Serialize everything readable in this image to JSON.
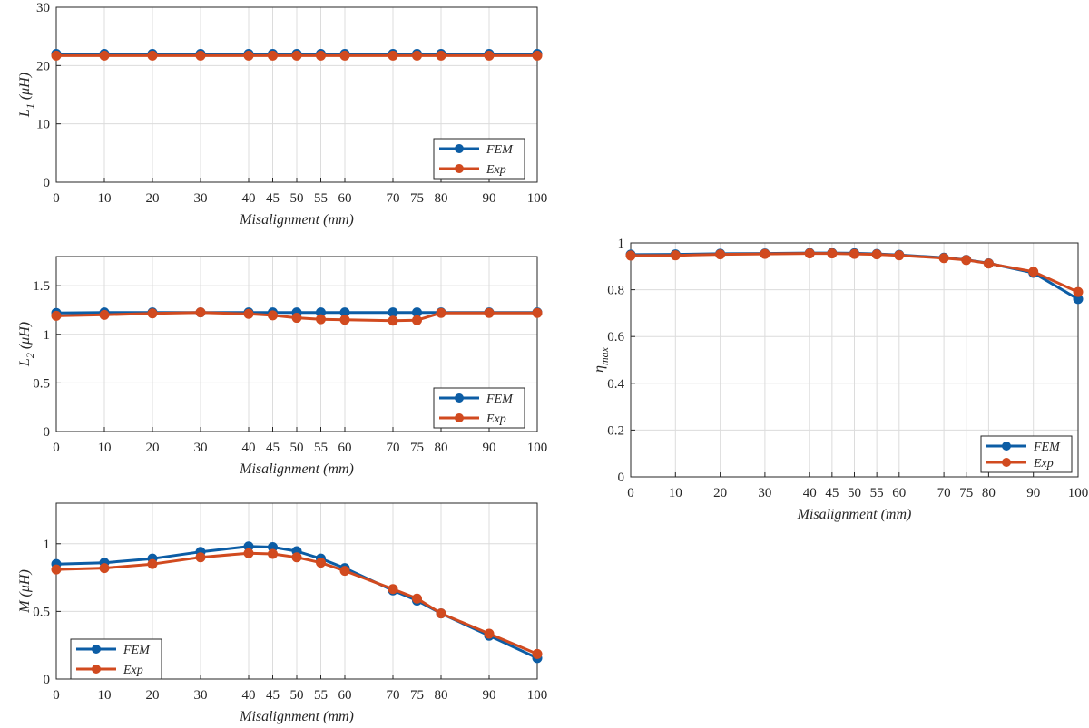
{
  "colors": {
    "fem": "#0C5DA5",
    "exp": "#D14A1F",
    "axis": "#262626",
    "grid": "#dcdcdc"
  },
  "legend": [
    "FEM",
    "Exp"
  ],
  "chart_data": [
    {
      "type": "line",
      "id": "L1",
      "ylabel": "L",
      "ylabel_sub": "1",
      "ylabel_unit": " (μH)",
      "xlabel": "Misalignment (mm)",
      "xlim": [
        0,
        100
      ],
      "ylim": [
        0,
        30
      ],
      "yticks": [
        0,
        10,
        20,
        30
      ],
      "xticks": [
        0,
        10,
        20,
        30,
        40,
        45,
        50,
        55,
        60,
        70,
        75,
        80,
        90,
        100
      ],
      "grid": true,
      "legend_position": "bottom-right",
      "x": [
        0,
        10,
        20,
        30,
        40,
        45,
        50,
        55,
        60,
        70,
        75,
        80,
        90,
        100
      ],
      "series": [
        {
          "name": "FEM",
          "values": [
            22.0,
            22.0,
            22.0,
            22.0,
            22.0,
            22.0,
            22.0,
            22.0,
            22.0,
            22.0,
            22.0,
            22.0,
            22.0,
            22.0
          ]
        },
        {
          "name": "Exp",
          "values": [
            21.7,
            21.7,
            21.7,
            21.7,
            21.7,
            21.7,
            21.7,
            21.7,
            21.7,
            21.7,
            21.7,
            21.7,
            21.7,
            21.7
          ]
        }
      ]
    },
    {
      "type": "line",
      "id": "L2",
      "ylabel": "L",
      "ylabel_sub": "2",
      "ylabel_unit": " (μH)",
      "xlabel": "Misalignment (mm)",
      "xlim": [
        0,
        100
      ],
      "ylim": [
        0,
        1.8
      ],
      "yticks": [
        0,
        0.5,
        1,
        1.5
      ],
      "xticks": [
        0,
        10,
        20,
        30,
        40,
        45,
        50,
        55,
        60,
        70,
        75,
        80,
        90,
        100
      ],
      "grid": true,
      "legend_position": "bottom-right",
      "x": [
        0,
        10,
        20,
        30,
        40,
        45,
        50,
        55,
        60,
        70,
        75,
        80,
        90,
        100
      ],
      "series": [
        {
          "name": "FEM",
          "values": [
            1.22,
            1.225,
            1.225,
            1.225,
            1.225,
            1.225,
            1.225,
            1.225,
            1.225,
            1.225,
            1.225,
            1.225,
            1.225,
            1.225
          ]
        },
        {
          "name": "Exp",
          "values": [
            1.19,
            1.2,
            1.215,
            1.225,
            1.21,
            1.195,
            1.17,
            1.155,
            1.15,
            1.14,
            1.145,
            1.22,
            1.22,
            1.22
          ]
        }
      ]
    },
    {
      "type": "line",
      "id": "M",
      "ylabel": "M",
      "ylabel_sub": "",
      "ylabel_unit": " (μH)",
      "xlabel": "Misalignment (mm)",
      "xlim": [
        0,
        100
      ],
      "ylim": [
        0,
        1.3
      ],
      "yticks": [
        0,
        0.5,
        1
      ],
      "xticks": [
        0,
        10,
        20,
        30,
        40,
        45,
        50,
        55,
        60,
        70,
        75,
        80,
        90,
        100
      ],
      "grid": true,
      "legend_position": "bottom-left",
      "x": [
        0,
        10,
        20,
        30,
        40,
        45,
        50,
        55,
        60,
        70,
        75,
        80,
        90,
        100
      ],
      "series": [
        {
          "name": "FEM",
          "values": [
            0.85,
            0.86,
            0.89,
            0.94,
            0.98,
            0.975,
            0.945,
            0.89,
            0.82,
            0.655,
            0.58,
            0.485,
            0.32,
            0.155
          ]
        },
        {
          "name": "Exp",
          "values": [
            0.81,
            0.82,
            0.85,
            0.9,
            0.93,
            0.925,
            0.9,
            0.86,
            0.8,
            0.665,
            0.595,
            0.485,
            0.335,
            0.185
          ]
        }
      ]
    },
    {
      "type": "line",
      "id": "eta",
      "ylabel": "η",
      "ylabel_sub": "max",
      "ylabel_unit": "",
      "xlabel": "Misalignment (mm)",
      "xlim": [
        0,
        100
      ],
      "ylim": [
        0,
        1
      ],
      "yticks": [
        0,
        0.2,
        0.4,
        0.6,
        0.8,
        1
      ],
      "xticks": [
        0,
        10,
        20,
        30,
        40,
        45,
        50,
        55,
        60,
        70,
        75,
        80,
        90,
        100
      ],
      "grid": true,
      "legend_position": "bottom-right",
      "x": [
        0,
        10,
        20,
        30,
        40,
        45,
        50,
        55,
        60,
        70,
        75,
        80,
        90,
        100
      ],
      "series": [
        {
          "name": "FEM",
          "values": [
            0.95,
            0.951,
            0.954,
            0.955,
            0.957,
            0.957,
            0.956,
            0.953,
            0.949,
            0.937,
            0.928,
            0.913,
            0.872,
            0.76
          ]
        },
        {
          "name": "Exp",
          "values": [
            0.946,
            0.947,
            0.951,
            0.953,
            0.955,
            0.955,
            0.953,
            0.951,
            0.947,
            0.935,
            0.927,
            0.912,
            0.877,
            0.79
          ]
        }
      ]
    }
  ]
}
